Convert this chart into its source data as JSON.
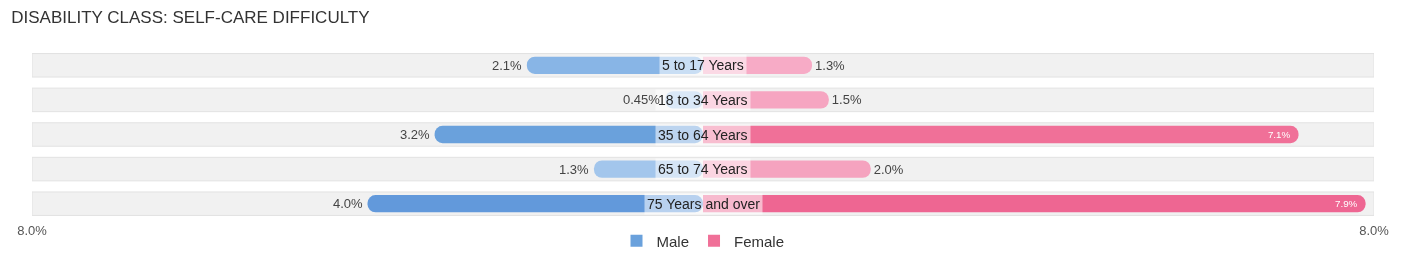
{
  "chart_data": {
    "type": "bar",
    "orientation": "horizontal",
    "title": "DISABILITY CLASS: SELF-CARE DIFFICULTY",
    "categories": [
      "5 to 17 Years",
      "18 to 34 Years",
      "35 to 64 Years",
      "65 to 74 Years",
      "75 Years and over"
    ],
    "series": [
      {
        "name": "Male",
        "color": "#6aa1dc",
        "colors": [
          "#88b5e6",
          "#aecdee",
          "#6aa1dc",
          "#a3c6ec",
          "#6299db"
        ],
        "base": [
          -2.1,
          -0.45,
          -3.2,
          -1.3,
          -4.0
        ],
        "values": [
          2.1,
          0.45,
          3.2,
          1.3,
          4.0
        ],
        "value_labels": [
          "2.1%",
          "0.45%",
          "3.2%",
          "1.3%",
          "4.0%"
        ]
      },
      {
        "name": "Female",
        "color": "#f07098",
        "colors": [
          "#f7abc6",
          "#f6a5c1",
          "#f07098",
          "#f5a3bf",
          "#ee6692"
        ],
        "values": [
          1.3,
          1.5,
          7.1,
          2.0,
          7.9
        ],
        "value_labels": [
          "1.3%",
          "1.5%",
          "7.1%",
          "2.0%",
          "7.9%"
        ]
      }
    ],
    "xlim": [
      -8,
      8
    ],
    "xticks": [
      {
        "value": -8,
        "label": "8.0%"
      },
      {
        "value": 8,
        "label": "8.0%"
      }
    ],
    "legend": "bottom"
  }
}
